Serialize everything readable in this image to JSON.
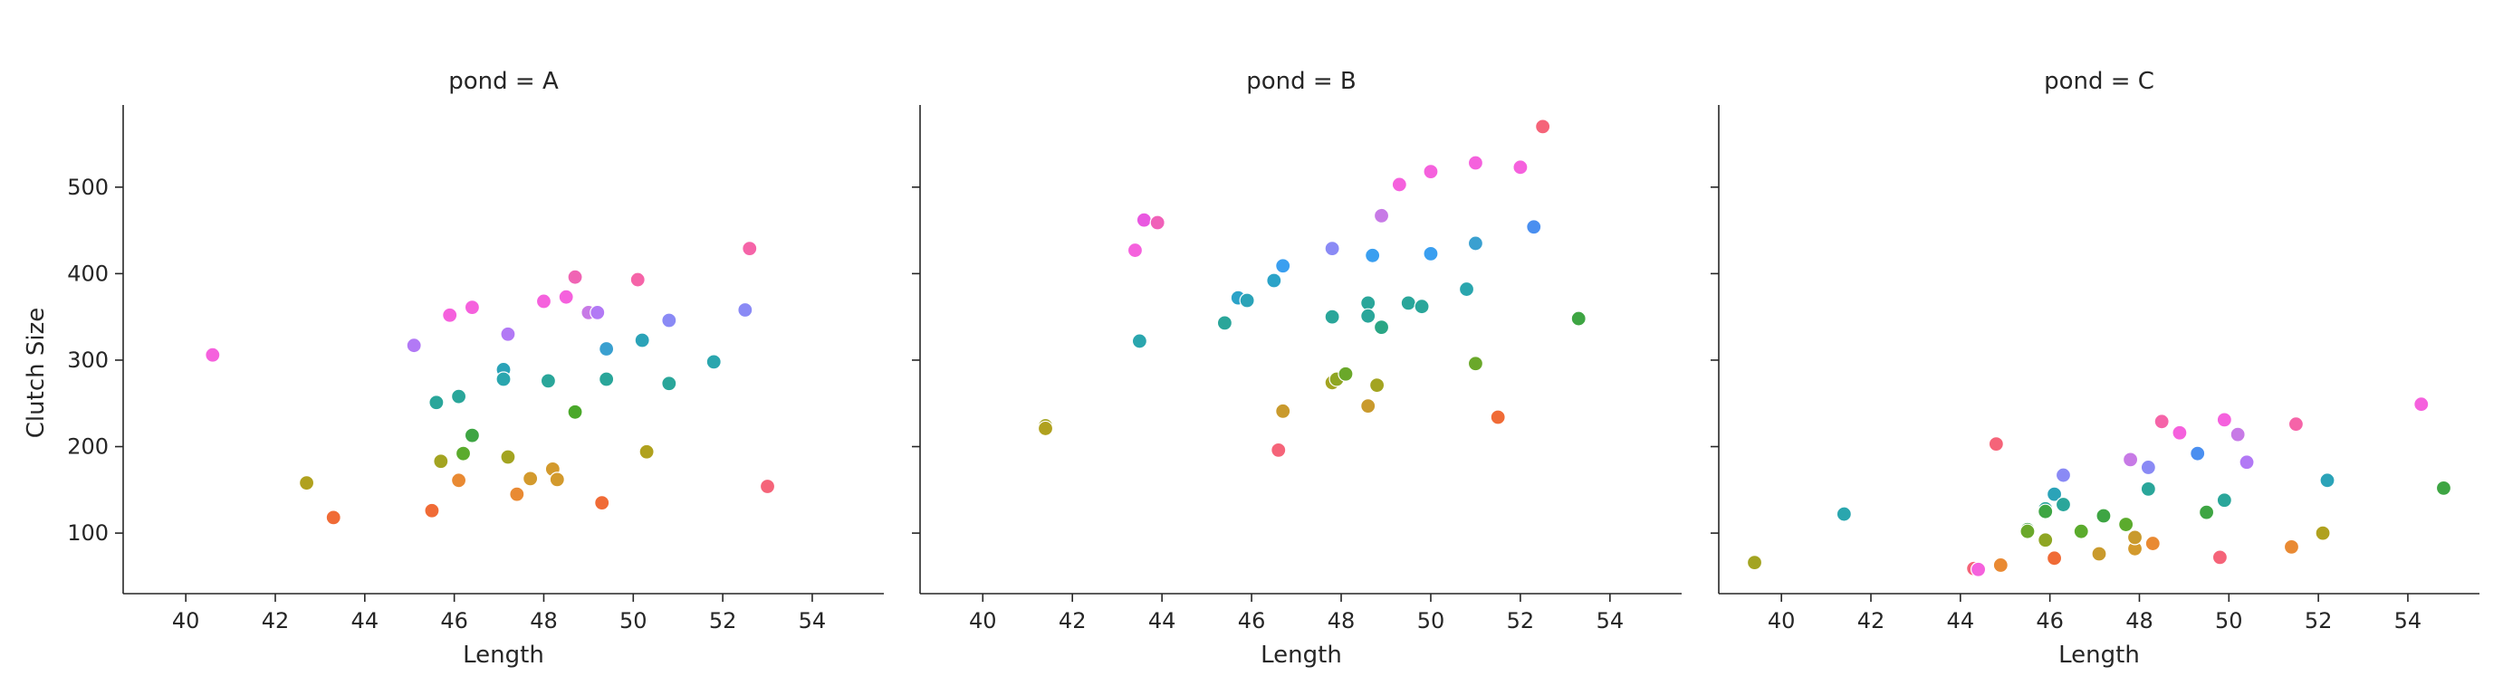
{
  "chart_data": {
    "type": "scatter",
    "xlabel": "Length",
    "ylabel": "Clutch Size",
    "xlim": [
      38.6,
      55.6
    ],
    "ylim": [
      30,
      595
    ],
    "x_ticks": [
      40,
      42,
      44,
      46,
      48,
      50,
      52,
      54
    ],
    "y_ticks": [
      100,
      200,
      300,
      400,
      500
    ],
    "shared_y": true,
    "grid": false,
    "legend": "none",
    "hue": "color varies by point (per-individual)",
    "facets": [
      {
        "title": "pond = A",
        "points": [
          {
            "x": 40.6,
            "y": 306,
            "color": "#f561dd"
          },
          {
            "x": 42.7,
            "y": 158,
            "color": "#b0a11e"
          },
          {
            "x": 43.3,
            "y": 118,
            "color": "#f06b36"
          },
          {
            "x": 45.1,
            "y": 317,
            "color": "#b279f5"
          },
          {
            "x": 45.5,
            "y": 126,
            "color": "#f06b36"
          },
          {
            "x": 45.6,
            "y": 251,
            "color": "#2aa69a"
          },
          {
            "x": 45.7,
            "y": 183,
            "color": "#a3a421"
          },
          {
            "x": 45.9,
            "y": 352,
            "color": "#f561dd"
          },
          {
            "x": 46.1,
            "y": 258,
            "color": "#2aa69a"
          },
          {
            "x": 46.1,
            "y": 161,
            "color": "#e98a33"
          },
          {
            "x": 46.2,
            "y": 192,
            "color": "#5bab2d"
          },
          {
            "x": 46.4,
            "y": 361,
            "color": "#f561dd"
          },
          {
            "x": 46.4,
            "y": 213,
            "color": "#3ea543"
          },
          {
            "x": 47.1,
            "y": 289,
            "color": "#2ba3b8"
          },
          {
            "x": 47.1,
            "y": 278,
            "color": "#2aa6ae"
          },
          {
            "x": 47.2,
            "y": 330,
            "color": "#b279f5"
          },
          {
            "x": 47.2,
            "y": 188,
            "color": "#a3a421"
          },
          {
            "x": 47.4,
            "y": 145,
            "color": "#e98a33"
          },
          {
            "x": 47.7,
            "y": 163,
            "color": "#d39a2d"
          },
          {
            "x": 48.0,
            "y": 368,
            "color": "#f561dd"
          },
          {
            "x": 48.1,
            "y": 276,
            "color": "#2aa69a"
          },
          {
            "x": 48.2,
            "y": 174,
            "color": "#d39a2d"
          },
          {
            "x": 48.3,
            "y": 162,
            "color": "#d39a2d"
          },
          {
            "x": 48.5,
            "y": 373,
            "color": "#f561dd"
          },
          {
            "x": 48.7,
            "y": 396,
            "color": "#f064b4"
          },
          {
            "x": 48.7,
            "y": 240,
            "color": "#4aa82a"
          },
          {
            "x": 49.0,
            "y": 355,
            "color": "#c77ae6"
          },
          {
            "x": 49.2,
            "y": 355,
            "color": "#b279f5"
          },
          {
            "x": 49.3,
            "y": 135,
            "color": "#f06b36"
          },
          {
            "x": 49.4,
            "y": 313,
            "color": "#3aa0d0"
          },
          {
            "x": 49.4,
            "y": 278,
            "color": "#2aa69a"
          },
          {
            "x": 50.1,
            "y": 393,
            "color": "#f564a8"
          },
          {
            "x": 50.2,
            "y": 323,
            "color": "#2ba3b8"
          },
          {
            "x": 50.3,
            "y": 194,
            "color": "#b0a11e"
          },
          {
            "x": 50.8,
            "y": 346,
            "color": "#8a8af5"
          },
          {
            "x": 50.8,
            "y": 273,
            "color": "#2aa69a"
          },
          {
            "x": 51.8,
            "y": 298,
            "color": "#2aa6ae"
          },
          {
            "x": 52.5,
            "y": 358,
            "color": "#8a8af5"
          },
          {
            "x": 52.6,
            "y": 429,
            "color": "#f564a8"
          },
          {
            "x": 53.0,
            "y": 154,
            "color": "#f56479"
          }
        ]
      },
      {
        "title": "pond = B",
        "points": [
          {
            "x": 41.4,
            "y": 224,
            "color": "#a3a421"
          },
          {
            "x": 41.4,
            "y": 221,
            "color": "#b0a11e"
          },
          {
            "x": 43.4,
            "y": 427,
            "color": "#f561dd"
          },
          {
            "x": 43.5,
            "y": 322,
            "color": "#2aa6ae"
          },
          {
            "x": 43.6,
            "y": 462,
            "color": "#e958e0"
          },
          {
            "x": 43.9,
            "y": 459,
            "color": "#f061b9"
          },
          {
            "x": 45.4,
            "y": 343,
            "color": "#2aa69a"
          },
          {
            "x": 45.7,
            "y": 372,
            "color": "#2ba3c8"
          },
          {
            "x": 45.9,
            "y": 369,
            "color": "#2ba3b8"
          },
          {
            "x": 46.5,
            "y": 392,
            "color": "#2ba3c8"
          },
          {
            "x": 46.6,
            "y": 196,
            "color": "#f56479"
          },
          {
            "x": 46.7,
            "y": 241,
            "color": "#c99a2d"
          },
          {
            "x": 46.7,
            "y": 409,
            "color": "#3a9ff0"
          },
          {
            "x": 47.8,
            "y": 429,
            "color": "#8a8af5"
          },
          {
            "x": 47.8,
            "y": 350,
            "color": "#2aa69a"
          },
          {
            "x": 47.8,
            "y": 274,
            "color": "#a3a421"
          },
          {
            "x": 47.9,
            "y": 278,
            "color": "#8fa624"
          },
          {
            "x": 48.1,
            "y": 284,
            "color": "#6aa82a"
          },
          {
            "x": 48.6,
            "y": 366,
            "color": "#2aa69a"
          },
          {
            "x": 48.6,
            "y": 351,
            "color": "#2aa69a"
          },
          {
            "x": 48.6,
            "y": 247,
            "color": "#c99a2d"
          },
          {
            "x": 48.7,
            "y": 421,
            "color": "#3a9ff0"
          },
          {
            "x": 48.8,
            "y": 271,
            "color": "#a3a421"
          },
          {
            "x": 48.9,
            "y": 338,
            "color": "#2aa685"
          },
          {
            "x": 48.9,
            "y": 467,
            "color": "#c77ae6"
          },
          {
            "x": 49.3,
            "y": 503,
            "color": "#f561dd"
          },
          {
            "x": 49.5,
            "y": 366,
            "color": "#2aa69a"
          },
          {
            "x": 49.8,
            "y": 362,
            "color": "#2aa69a"
          },
          {
            "x": 50.0,
            "y": 423,
            "color": "#3a9ff0"
          },
          {
            "x": 50.0,
            "y": 518,
            "color": "#f561dd"
          },
          {
            "x": 50.8,
            "y": 382,
            "color": "#2aa6ae"
          },
          {
            "x": 51.0,
            "y": 435,
            "color": "#3aa0d0"
          },
          {
            "x": 51.0,
            "y": 296,
            "color": "#6aa82a"
          },
          {
            "x": 51.0,
            "y": 528,
            "color": "#f561dd"
          },
          {
            "x": 51.5,
            "y": 234,
            "color": "#f06b36"
          },
          {
            "x": 52.0,
            "y": 523,
            "color": "#f561dd"
          },
          {
            "x": 52.3,
            "y": 454,
            "color": "#4a8ff0"
          },
          {
            "x": 52.5,
            "y": 570,
            "color": "#f56479"
          },
          {
            "x": 53.3,
            "y": 348,
            "color": "#3ea543"
          }
        ]
      },
      {
        "title": "pond = C",
        "points": [
          {
            "x": 39.4,
            "y": 66,
            "color": "#a3a421"
          },
          {
            "x": 41.4,
            "y": 122,
            "color": "#2aa6ae"
          },
          {
            "x": 44.3,
            "y": 59,
            "color": "#f56479"
          },
          {
            "x": 44.4,
            "y": 58,
            "color": "#f561dd"
          },
          {
            "x": 44.8,
            "y": 203,
            "color": "#f56479"
          },
          {
            "x": 44.9,
            "y": 63,
            "color": "#e98a33"
          },
          {
            "x": 45.5,
            "y": 104,
            "color": "#3ea543"
          },
          {
            "x": 45.5,
            "y": 102,
            "color": "#6aa82a"
          },
          {
            "x": 45.9,
            "y": 128,
            "color": "#2aa69a"
          },
          {
            "x": 45.9,
            "y": 125,
            "color": "#3ea543"
          },
          {
            "x": 45.9,
            "y": 92,
            "color": "#8fa624"
          },
          {
            "x": 46.1,
            "y": 71,
            "color": "#f06b36"
          },
          {
            "x": 46.1,
            "y": 145,
            "color": "#2ba3b8"
          },
          {
            "x": 46.3,
            "y": 133,
            "color": "#2aa69a"
          },
          {
            "x": 46.3,
            "y": 167,
            "color": "#8a8af5"
          },
          {
            "x": 46.7,
            "y": 102,
            "color": "#5bab2d"
          },
          {
            "x": 47.1,
            "y": 76,
            "color": "#c99a2d"
          },
          {
            "x": 47.2,
            "y": 120,
            "color": "#3ea543"
          },
          {
            "x": 47.7,
            "y": 110,
            "color": "#5bab2d"
          },
          {
            "x": 47.8,
            "y": 185,
            "color": "#c77ae6"
          },
          {
            "x": 47.9,
            "y": 82,
            "color": "#d39a2d"
          },
          {
            "x": 47.9,
            "y": 95,
            "color": "#c99a2d"
          },
          {
            "x": 48.2,
            "y": 176,
            "color": "#8a8af5"
          },
          {
            "x": 48.2,
            "y": 151,
            "color": "#2aa69a"
          },
          {
            "x": 48.3,
            "y": 88,
            "color": "#e98a33"
          },
          {
            "x": 48.5,
            "y": 229,
            "color": "#f564a8"
          },
          {
            "x": 48.9,
            "y": 216,
            "color": "#f561dd"
          },
          {
            "x": 49.3,
            "y": 192,
            "color": "#4a8ff0"
          },
          {
            "x": 49.5,
            "y": 124,
            "color": "#3ea543"
          },
          {
            "x": 49.8,
            "y": 72,
            "color": "#f56479"
          },
          {
            "x": 49.9,
            "y": 231,
            "color": "#f561dd"
          },
          {
            "x": 49.9,
            "y": 138,
            "color": "#2aa69a"
          },
          {
            "x": 50.2,
            "y": 214,
            "color": "#c77ae6"
          },
          {
            "x": 50.4,
            "y": 182,
            "color": "#b279f5"
          },
          {
            "x": 51.4,
            "y": 84,
            "color": "#e98a33"
          },
          {
            "x": 51.5,
            "y": 226,
            "color": "#f564a8"
          },
          {
            "x": 52.1,
            "y": 100,
            "color": "#b0a11e"
          },
          {
            "x": 52.2,
            "y": 161,
            "color": "#2ba3b8"
          },
          {
            "x": 54.3,
            "y": 249,
            "color": "#f561dd"
          },
          {
            "x": 54.8,
            "y": 152,
            "color": "#3ea543"
          }
        ]
      }
    ]
  }
}
